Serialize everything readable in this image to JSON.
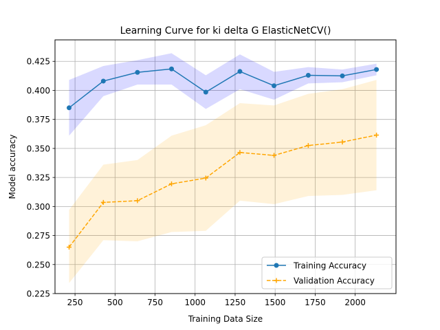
{
  "chart_data": {
    "type": "line",
    "title": "Learning Curve for ki delta G ElasticNetCV()",
    "xlabel": "Training Data Size",
    "ylabel": "Model accuracy",
    "xlim": [
      125,
      2255
    ],
    "ylim": [
      0.225,
      0.4435
    ],
    "xticks": [
      250,
      500,
      750,
      1000,
      1250,
      1500,
      1750,
      2000
    ],
    "xtick_labels": [
      "250",
      "500",
      "750",
      "1000",
      "1250",
      "1500",
      "1750",
      "2000"
    ],
    "yticks": [
      0.225,
      0.25,
      0.275,
      0.3,
      0.325,
      0.35,
      0.375,
      0.4,
      0.425
    ],
    "ytick_labels": [
      "0.225",
      "0.250",
      "0.275",
      "0.300",
      "0.325",
      "0.350",
      "0.375",
      "0.400",
      "0.425"
    ],
    "grid": true,
    "legend_position": "lower-right",
    "x": [
      213,
      427,
      640,
      853,
      1067,
      1280,
      1493,
      1707,
      1920,
      2133
    ],
    "series": [
      {
        "name": "Training Accuracy",
        "color": "#1f77b4",
        "band_color": "#0000ff",
        "line_style": "solid",
        "marker": "circle",
        "values": [
          0.385,
          0.408,
          0.4155,
          0.4185,
          0.3985,
          0.4163,
          0.404,
          0.413,
          0.4125,
          0.418
        ],
        "lower": [
          0.361,
          0.395,
          0.405,
          0.405,
          0.384,
          0.401,
          0.392,
          0.406,
          0.407,
          0.413
        ],
        "upper": [
          0.409,
          0.421,
          0.426,
          0.432,
          0.413,
          0.431,
          0.416,
          0.42,
          0.418,
          0.423
        ]
      },
      {
        "name": "Validation Accuracy",
        "color": "#ffa500",
        "band_color": "#ffa500",
        "line_style": "dashed",
        "marker": "plus",
        "values": [
          0.265,
          0.3035,
          0.305,
          0.3195,
          0.3245,
          0.3465,
          0.344,
          0.3525,
          0.3555,
          0.3615
        ],
        "lower": [
          0.234,
          0.271,
          0.27,
          0.278,
          0.279,
          0.305,
          0.302,
          0.309,
          0.31,
          0.314
        ],
        "upper": [
          0.297,
          0.336,
          0.34,
          0.361,
          0.37,
          0.389,
          0.387,
          0.397,
          0.401,
          0.409
        ]
      }
    ]
  }
}
